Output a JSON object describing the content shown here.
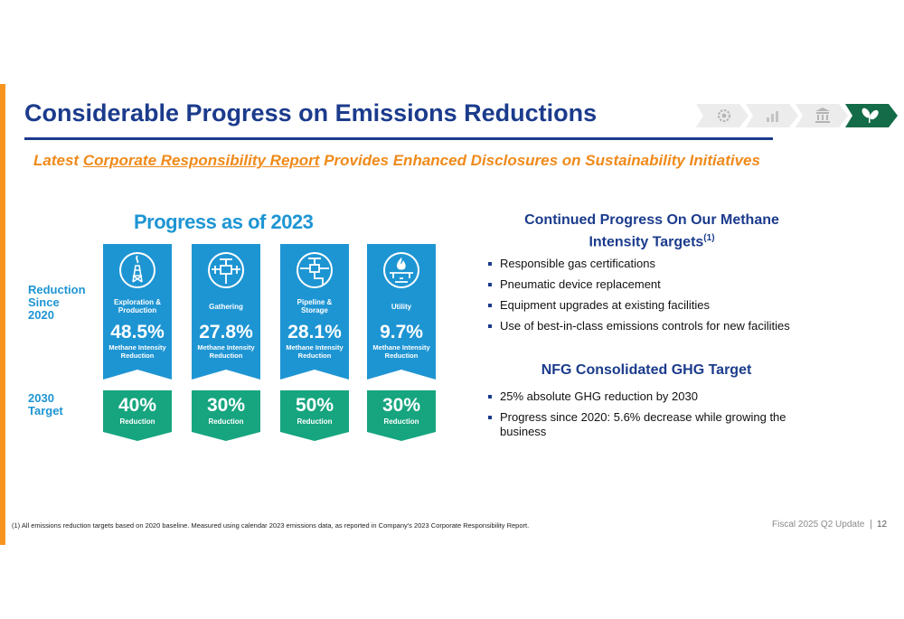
{
  "header": {
    "title": "Considerable Progress on Emissions Reductions",
    "subtitle_prefix": "Latest",
    "subtitle_link": "Corporate Responsibility Report",
    "subtitle_suffix": "Provides Enhanced Disclosures on Sustainability Initiatives",
    "nav_icons": [
      "gear-icon",
      "bar-chart-icon",
      "building-icon",
      "leaf-icon"
    ],
    "colors": {
      "navy": "#1b3b8c",
      "orange": "#ef8a1a",
      "blue": "#1e95d3",
      "green": "#16a57f"
    }
  },
  "progress": {
    "title": "Progress as of 2023",
    "row1_label": [
      "Reduction",
      "Since",
      "2020"
    ],
    "row2_label": [
      "2030",
      "Target"
    ],
    "segments": [
      {
        "icon": "oil-derrick-icon",
        "category": [
          "Exploration &",
          "Production"
        ],
        "value": "48.5%",
        "metric": [
          "Methane Intensity",
          "Reduction"
        ],
        "target": "40%",
        "target_label": "Reduction"
      },
      {
        "icon": "valve-icon",
        "category": [
          "Gathering"
        ],
        "value": "27.8%",
        "metric": [
          "Methane Intensity",
          "Reduction"
        ],
        "target": "30%",
        "target_label": "Reduction"
      },
      {
        "icon": "pipeline-valve-icon",
        "category": [
          "Pipeline &",
          "Storage"
        ],
        "value": "28.1%",
        "metric": [
          "Methane Intensity",
          "Reduction"
        ],
        "target": "50%",
        "target_label": "Reduction"
      },
      {
        "icon": "gas-flame-icon",
        "category": [
          "Utility"
        ],
        "value": "9.7%",
        "metric": [
          "Methane Intensity",
          "Reduction"
        ],
        "target": "30%",
        "target_label": "Reduction"
      }
    ]
  },
  "methane": {
    "heading_line1": "Continued Progress On Our Methane",
    "heading_line2": "Intensity Targets",
    "heading_sup": "(1)",
    "bullets": [
      "Responsible gas certifications",
      "Pneumatic device replacement",
      "Equipment upgrades at existing facilities",
      "Use of best-in-class emissions controls for new facilities"
    ]
  },
  "ghg": {
    "heading": "NFG Consolidated GHG Target",
    "bullets": [
      "25% absolute GHG reduction by 2030",
      "Progress since 2020: 5.6% decrease while growing the business"
    ]
  },
  "footer": {
    "footnote": "(1)   All emissions reduction targets based on 2020 baseline. Measured using calendar 2023 emissions data, as reported in Company's 2023 Corporate Responsibility Report.",
    "label": "Fiscal 2025 Q2 Update",
    "page": "12"
  }
}
